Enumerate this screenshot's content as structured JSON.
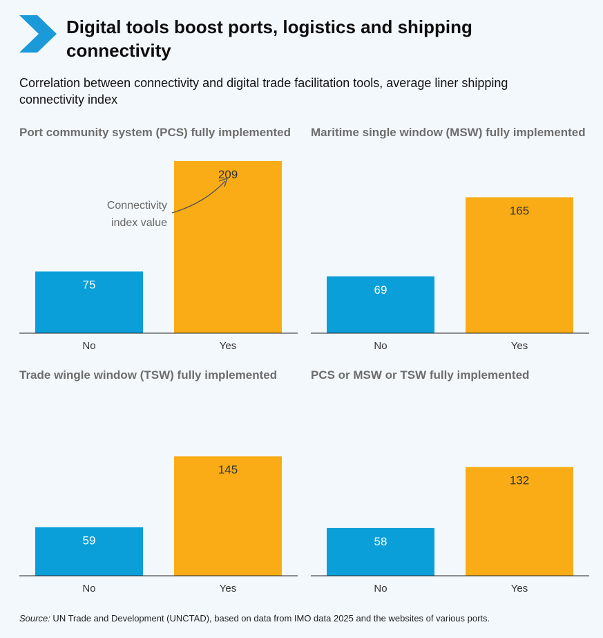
{
  "header": {
    "title": "Digital tools boost ports, logistics and shipping connectivity",
    "subtitle": "Correlation between connectivity and digital trade facilitation tools, average liner shipping connectivity index"
  },
  "colors": {
    "no": "#0a9fd9",
    "yes": "#f9ac16",
    "accent": "#1a9ad8",
    "axis": "#222222"
  },
  "annotation": {
    "line1": "Connectivity",
    "line2": "index value"
  },
  "source": {
    "label": "Source:",
    "text": " UN Trade and Development (UNCTAD), based on data from IMO data 2025 and the websites of various ports."
  },
  "chart_data": [
    {
      "type": "bar",
      "title": "Port community system (PCS) fully implemented",
      "categories": [
        "No",
        "Yes"
      ],
      "values": [
        75,
        209
      ],
      "labels": [
        "75",
        "209"
      ],
      "ylim": [
        0,
        209
      ]
    },
    {
      "type": "bar",
      "title": "Maritime single window (MSW) fully implemented",
      "categories": [
        "No",
        "Yes"
      ],
      "values": [
        69,
        165
      ],
      "labels": [
        "69",
        "165"
      ],
      "ylim": [
        0,
        209
      ]
    },
    {
      "type": "bar",
      "title": "Trade wingle window (TSW) fully implemented",
      "categories": [
        "No",
        "Yes"
      ],
      "values": [
        59,
        145
      ],
      "labels": [
        "59",
        "145"
      ],
      "ylim": [
        0,
        209
      ]
    },
    {
      "type": "bar",
      "title": "PCS or MSW or TSW fully implemented",
      "categories": [
        "No",
        "Yes"
      ],
      "values": [
        58,
        132
      ],
      "labels": [
        "58",
        "132"
      ],
      "ylim": [
        0,
        209
      ]
    }
  ]
}
